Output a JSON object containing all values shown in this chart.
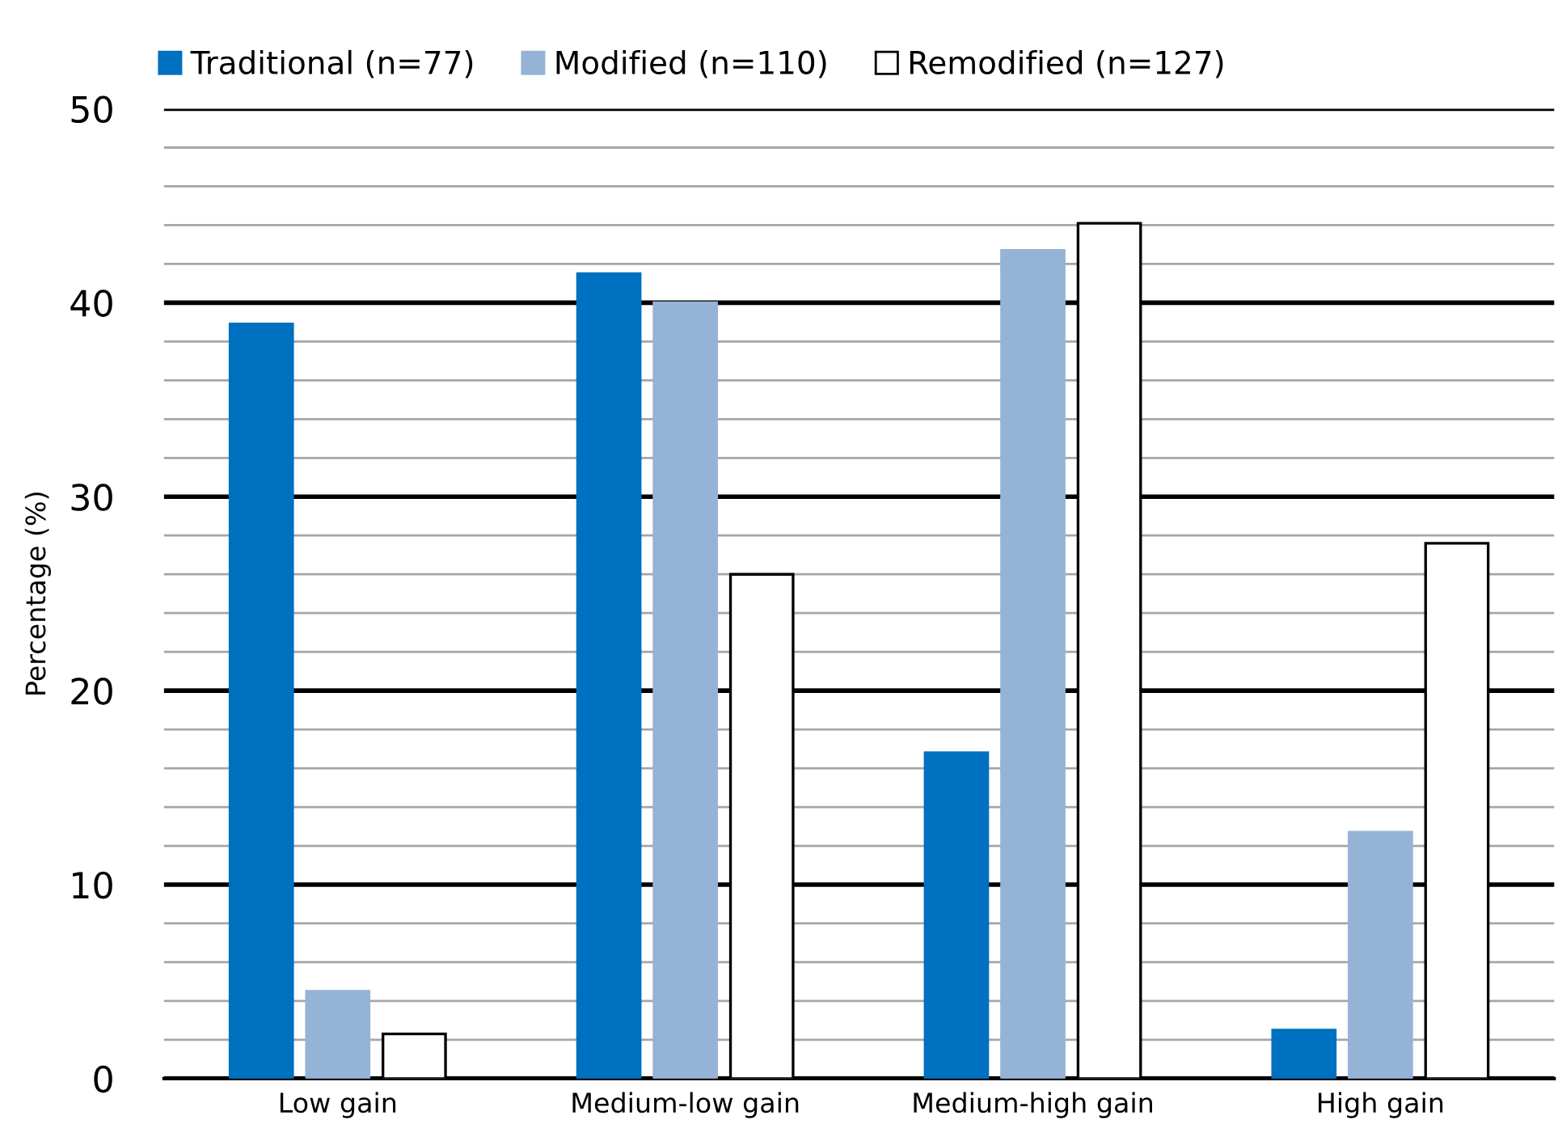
{
  "chart_data": {
    "type": "bar",
    "ylabel": "Percentage (%)",
    "categories": [
      "Low gain",
      "Medium-low gain",
      "Medium-high gain",
      "High gain"
    ],
    "series": [
      {
        "name": "Traditional (n=77)",
        "color": "#0070c0",
        "values": [
          38.9,
          41.5,
          16.8,
          2.5
        ]
      },
      {
        "name": "Modified (n=110)",
        "color": "#95b3d7",
        "values": [
          4.5,
          40.0,
          42.7,
          12.7
        ]
      },
      {
        "name": "Remodified (n=127)",
        "color": "#ffffff",
        "values": [
          2.3,
          26.0,
          44.1,
          27.6
        ]
      }
    ],
    "ylim": [
      0,
      50
    ],
    "yticks": [
      0,
      {
        "value": 2,
        "label": null
      },
      {
        "value": 4,
        "label": null
      },
      {
        "value": 6,
        "label": null
      },
      {
        "value": 8,
        "label": null
      },
      10,
      {
        "value": 12,
        "label": null
      },
      {
        "value": 14,
        "label": null
      },
      {
        "value": 16,
        "label": null
      },
      {
        "value": 18,
        "label": null
      },
      20,
      {
        "value": 22,
        "label": null
      },
      {
        "value": 24,
        "label": null
      },
      {
        "value": 26,
        "label": null
      },
      {
        "value": 28,
        "label": null
      },
      30,
      {
        "value": 32,
        "label": null
      },
      {
        "value": 34,
        "label": null
      },
      {
        "value": 36,
        "label": null
      },
      {
        "value": 38,
        "label": null
      },
      40,
      {
        "value": 42,
        "label": null
      },
      {
        "value": 44,
        "label": null
      },
      {
        "value": 46,
        "label": null
      },
      {
        "value": 48,
        "label": null
      },
      50
    ],
    "grid": "y",
    "legend": "top"
  }
}
